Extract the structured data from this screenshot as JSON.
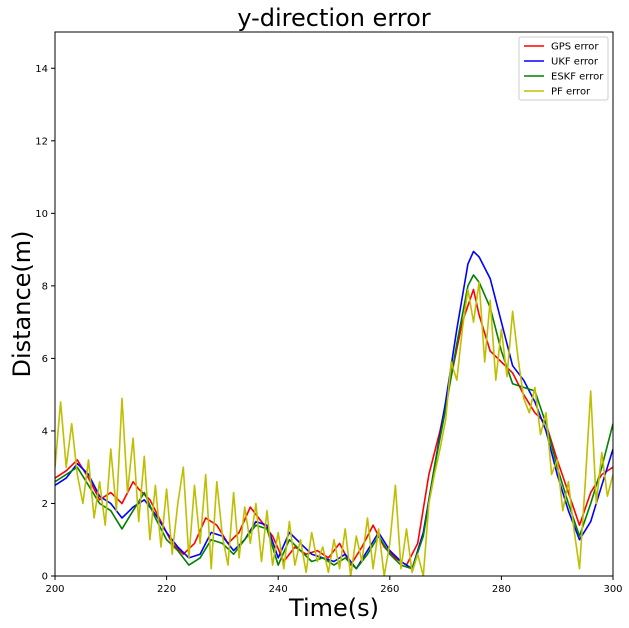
{
  "chart_data": {
    "type": "line",
    "title": "y-direction error",
    "xlabel": "Time(s)",
    "ylabel": "Distance(m)",
    "xlim": [
      200,
      300
    ],
    "ylim": [
      0,
      15
    ],
    "x_ticks": [
      200,
      220,
      240,
      260,
      280,
      300
    ],
    "y_ticks": [
      0,
      2,
      4,
      6,
      8,
      10,
      12,
      14
    ],
    "grid": false,
    "legend_position": "top-right",
    "series": [
      {
        "name": "GPS error",
        "color": "#ff0000",
        "x": [
          200,
          202,
          204,
          206,
          208,
          210,
          212,
          214,
          215,
          217,
          219,
          221,
          223,
          225,
          227,
          229,
          231,
          233,
          235,
          237,
          239,
          241,
          243,
          245,
          247,
          249,
          251,
          253,
          255,
          257,
          259,
          261,
          263,
          265,
          267,
          269,
          271,
          273,
          275,
          276,
          278,
          280,
          282,
          284,
          286,
          288,
          290,
          292,
          294,
          296,
          298,
          300
        ],
        "y": [
          2.7,
          2.9,
          3.2,
          2.7,
          2.1,
          2.3,
          2.0,
          2.6,
          2.4,
          2.1,
          1.5,
          0.9,
          0.6,
          0.9,
          1.6,
          1.4,
          0.9,
          1.2,
          1.9,
          1.5,
          1.1,
          0.4,
          0.8,
          0.6,
          0.7,
          0.5,
          0.9,
          0.3,
          0.8,
          1.4,
          0.8,
          0.5,
          0.3,
          0.9,
          2.8,
          4.0,
          5.5,
          7.0,
          7.9,
          7.2,
          6.2,
          5.9,
          5.6,
          5.0,
          4.5,
          4.2,
          3.2,
          2.3,
          1.4,
          2.3,
          2.8,
          3.0
        ]
      },
      {
        "name": "UKF error",
        "color": "#0000ff",
        "x": [
          200,
          202,
          204,
          206,
          208,
          210,
          212,
          214,
          216,
          218,
          220,
          222,
          224,
          226,
          228,
          230,
          232,
          234,
          236,
          238,
          240,
          242,
          244,
          246,
          248,
          250,
          252,
          254,
          256,
          258,
          260,
          262,
          264,
          266,
          268,
          270,
          272,
          274,
          275,
          276,
          278,
          280,
          282,
          284,
          286,
          288,
          290,
          292,
          294,
          296,
          298,
          300
        ],
        "y": [
          2.5,
          2.7,
          3.1,
          2.8,
          2.2,
          2.0,
          1.6,
          1.9,
          2.1,
          1.7,
          1.2,
          0.8,
          0.5,
          0.6,
          1.2,
          1.1,
          0.7,
          1.0,
          1.5,
          1.4,
          0.5,
          1.2,
          0.9,
          0.6,
          0.5,
          0.4,
          0.6,
          0.2,
          0.7,
          1.2,
          0.7,
          0.4,
          0.2,
          1.2,
          3.0,
          4.8,
          6.8,
          8.6,
          8.95,
          8.8,
          8.2,
          7.0,
          5.8,
          5.4,
          4.8,
          4.0,
          2.8,
          1.8,
          1.0,
          1.5,
          2.5,
          3.5
        ]
      },
      {
        "name": "ESKF error",
        "color": "#008000",
        "x": [
          200,
          202,
          204,
          206,
          208,
          210,
          212,
          214,
          216,
          218,
          220,
          222,
          224,
          226,
          228,
          230,
          232,
          234,
          236,
          238,
          240,
          242,
          244,
          246,
          248,
          250,
          252,
          254,
          256,
          258,
          260,
          262,
          264,
          266,
          268,
          270,
          272,
          274,
          275,
          276,
          278,
          280,
          282,
          284,
          286,
          288,
          290,
          292,
          294,
          296,
          298,
          300
        ],
        "y": [
          2.6,
          2.8,
          3.0,
          2.5,
          2.0,
          1.8,
          1.3,
          1.8,
          2.3,
          1.6,
          1.0,
          0.7,
          0.3,
          0.5,
          1.0,
          0.9,
          0.6,
          1.0,
          1.4,
          1.3,
          0.3,
          1.0,
          0.7,
          0.4,
          0.5,
          0.3,
          0.5,
          0.2,
          0.6,
          1.1,
          0.6,
          0.3,
          0.2,
          1.1,
          3.0,
          4.6,
          6.4,
          8.0,
          8.3,
          8.1,
          7.4,
          6.2,
          5.3,
          5.2,
          5.1,
          4.2,
          3.0,
          2.0,
          1.1,
          2.0,
          3.0,
          4.2
        ]
      },
      {
        "name": "PF error",
        "color": "#bfbf00",
        "x": [
          200,
          201,
          202,
          203,
          204,
          205,
          206,
          207,
          208,
          209,
          210,
          211,
          212,
          213,
          214,
          215,
          216,
          217,
          218,
          219,
          220,
          221,
          222,
          223,
          224,
          225,
          226,
          227,
          228,
          229,
          230,
          231,
          232,
          233,
          234,
          235,
          236,
          237,
          238,
          239,
          240,
          241,
          242,
          243,
          244,
          245,
          246,
          247,
          248,
          249,
          250,
          251,
          252,
          253,
          254,
          255,
          256,
          257,
          258,
          259,
          260,
          261,
          262,
          263,
          264,
          265,
          266,
          267,
          268,
          269,
          270,
          271,
          272,
          273,
          274,
          275,
          276,
          277,
          278,
          279,
          280,
          281,
          282,
          283,
          284,
          285,
          286,
          287,
          288,
          289,
          290,
          291,
          292,
          293,
          294,
          295,
          296,
          297,
          298,
          299,
          300
        ],
        "y": [
          3.0,
          4.8,
          3.0,
          4.2,
          2.8,
          2.0,
          3.2,
          1.6,
          2.6,
          1.4,
          3.5,
          1.8,
          4.9,
          2.3,
          3.8,
          1.5,
          3.3,
          1.0,
          2.5,
          0.8,
          2.4,
          0.6,
          2.0,
          3.0,
          0.5,
          2.5,
          0.9,
          2.8,
          0.2,
          2.6,
          1.1,
          0.3,
          2.3,
          0.5,
          1.9,
          0.9,
          2.0,
          0.4,
          1.8,
          0.3,
          1.2,
          0.2,
          1.5,
          0.3,
          1.0,
          0.1,
          1.2,
          0.4,
          0.8,
          0.1,
          1.0,
          0.2,
          1.3,
          0.0,
          1.1,
          0.4,
          1.6,
          0.2,
          1.3,
          0.0,
          0.9,
          2.5,
          0.2,
          1.3,
          0.1,
          0.6,
          0.0,
          2.0,
          2.8,
          3.5,
          4.3,
          5.9,
          5.4,
          6.8,
          7.9,
          7.0,
          8.1,
          5.9,
          7.6,
          5.4,
          6.8,
          5.5,
          7.3,
          6.0,
          4.9,
          4.5,
          5.2,
          3.9,
          4.5,
          2.8,
          3.2,
          1.8,
          2.6,
          1.3,
          0.2,
          2.5,
          5.1,
          2.0,
          3.4,
          2.2,
          2.8
        ]
      }
    ]
  }
}
